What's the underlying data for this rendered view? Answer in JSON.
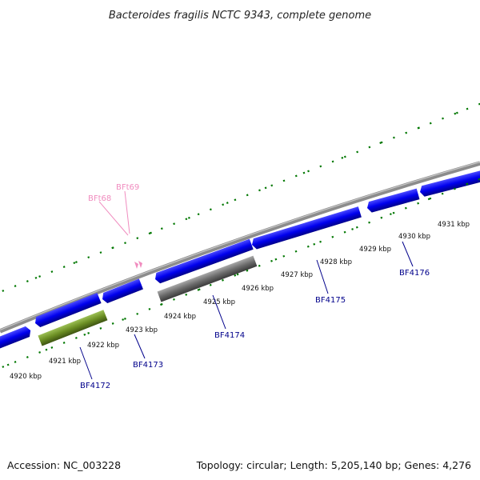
{
  "title": "Bacteroides fragilis NCTC 9343, complete genome",
  "accession_text": "Accession: NC_003228",
  "topology_text": "Topology: circular; Length: 5,205,140 bp; Genes: 4,276",
  "colors": {
    "forward_cds": "#0000ee",
    "reverse_cds": "#6b6b6b",
    "olive_cds": "#6b8e23",
    "rna": "#f08cbf",
    "backbone": "#8c8c8c",
    "ticks": "#007700",
    "gene_label": "#00008b"
  },
  "kbp_labels": [
    "4920 kbp",
    "4921 kbp",
    "4922 kbp",
    "4923 kbp",
    "4924 kbp",
    "4925 kbp",
    "4926 kbp",
    "4927 kbp",
    "4928 kbp",
    "4929 kbp",
    "4930 kbp",
    "4931 kbp"
  ],
  "gene_labels": [
    "BF4172",
    "BF4173",
    "BF4174",
    "BF4175",
    "BF4176"
  ],
  "rna_labels": [
    "BFt68",
    "BFt69"
  ]
}
